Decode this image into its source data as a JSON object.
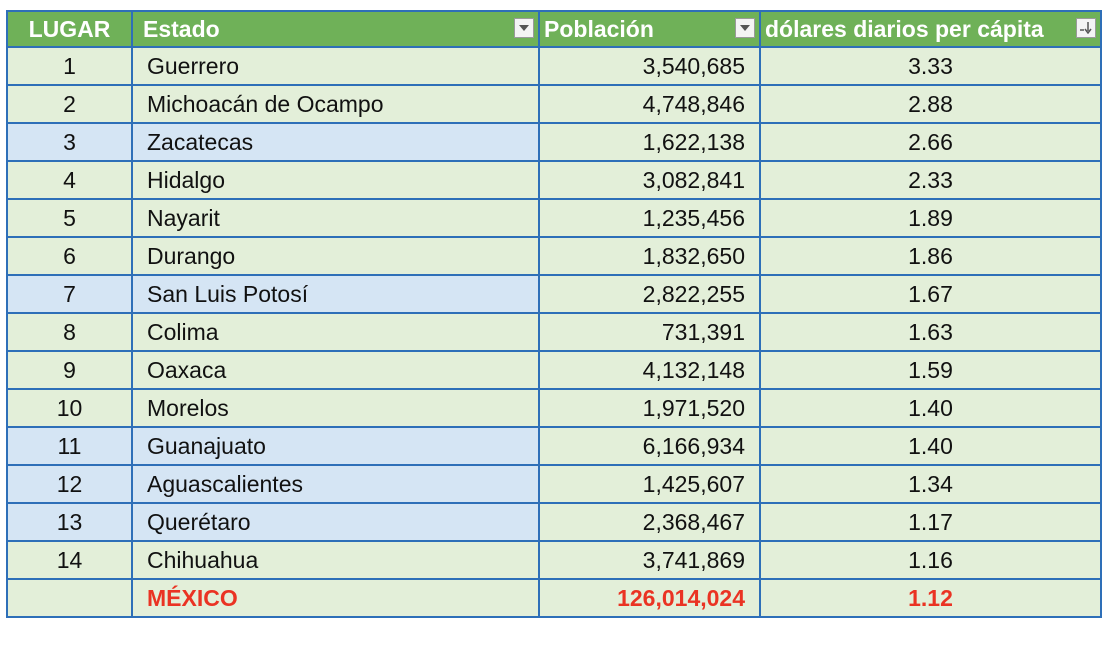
{
  "headers": {
    "lugar": "LUGAR",
    "estado": "Estado",
    "poblacion": "Población",
    "usd": "dólares diarios per cápita"
  },
  "icons": {
    "filter": "dropdown-arrow-icon",
    "sort": "sort-descending-icon"
  },
  "colors": {
    "header_bg": "#6fb158",
    "row_green": "#e3efd9",
    "row_blue": "#d5e5f4",
    "border": "#2e6fb8",
    "total_text": "#ea3323"
  },
  "rows": [
    {
      "lugar": "1",
      "estado": "Guerrero",
      "poblacion": "3,540,685",
      "usd": "3.33"
    },
    {
      "lugar": "2",
      "estado": "Michoacán de Ocampo",
      "poblacion": "4,748,846",
      "usd": "2.88"
    },
    {
      "lugar": "3",
      "estado": "Zacatecas",
      "poblacion": "1,622,138",
      "usd": "2.66"
    },
    {
      "lugar": "4",
      "estado": "Hidalgo",
      "poblacion": "3,082,841",
      "usd": "2.33"
    },
    {
      "lugar": "5",
      "estado": "Nayarit",
      "poblacion": "1,235,456",
      "usd": "1.89"
    },
    {
      "lugar": "6",
      "estado": "Durango",
      "poblacion": "1,832,650",
      "usd": "1.86"
    },
    {
      "lugar": "7",
      "estado": "San Luis Potosí",
      "poblacion": "2,822,255",
      "usd": "1.67"
    },
    {
      "lugar": "8",
      "estado": "Colima",
      "poblacion": "731,391",
      "usd": "1.63"
    },
    {
      "lugar": "9",
      "estado": "Oaxaca",
      "poblacion": "4,132,148",
      "usd": "1.59"
    },
    {
      "lugar": "10",
      "estado": "Morelos",
      "poblacion": "1,971,520",
      "usd": "1.40"
    },
    {
      "lugar": "11",
      "estado": "Guanajuato",
      "poblacion": "6,166,934",
      "usd": "1.40"
    },
    {
      "lugar": "12",
      "estado": "Aguascalientes",
      "poblacion": "1,425,607",
      "usd": "1.34"
    },
    {
      "lugar": "13",
      "estado": "Querétaro",
      "poblacion": "2,368,467",
      "usd": "1.17"
    },
    {
      "lugar": "14",
      "estado": "Chihuahua",
      "poblacion": "3,741,869",
      "usd": "1.16"
    }
  ],
  "total": {
    "lugar": "",
    "estado": "MÉXICO",
    "poblacion": "126,014,024",
    "usd": "1.12"
  }
}
